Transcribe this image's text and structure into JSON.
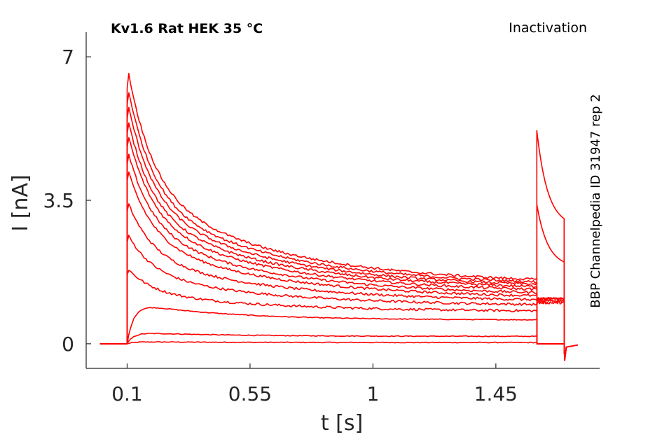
{
  "chart_data": {
    "type": "line",
    "title": "Kv1.6  Rat  HEK  35 °C",
    "subtitle": "Inactivation",
    "side_note": "BBP Channelpedia ID 31947 rep 2",
    "xlabel": "t [s]",
    "ylabel": "I [nA]",
    "xlim": [
      -0.05,
      1.83
    ],
    "ylim": [
      -0.6,
      7.6
    ],
    "x_ticks": [
      0.1,
      0.55,
      1,
      1.45
    ],
    "x_tick_labels": [
      "0.1",
      "0.55",
      "1",
      "1.45"
    ],
    "y_ticks": [
      0,
      3.5,
      7
    ],
    "y_tick_labels": [
      "0",
      "3.5",
      "7"
    ],
    "grid": false,
    "line_color": "#ff0000",
    "pulse_start": 0.1,
    "pulse_end": 1.6,
    "tail_end": 1.7,
    "baseline_start": 0.0,
    "trace_end": 1.75,
    "series": [
      {
        "peak": 0.05,
        "steady": 0.03,
        "tail": 0.0
      },
      {
        "peak": 0.28,
        "steady": 0.18,
        "tail": 0.0
      },
      {
        "peak": 1.0,
        "steady": 0.58,
        "tail": 0.0
      },
      {
        "peak": 1.85,
        "steady": 0.78,
        "tail": 0.0
      },
      {
        "peak": 2.7,
        "steady": 0.92,
        "tail": 0.0
      },
      {
        "peak": 3.5,
        "steady": 1.02,
        "tail": 0.0
      },
      {
        "peak": 4.3,
        "steady": 1.1,
        "tail": 0.0
      },
      {
        "peak": 4.75,
        "steady": 1.17,
        "tail": 1.0
      },
      {
        "peak": 5.2,
        "steady": 1.24,
        "tail": 1.05
      },
      {
        "peak": 5.55,
        "steady": 1.3,
        "tail": 1.1
      },
      {
        "peak": 5.95,
        "steady": 1.35,
        "tail": 1.1
      },
      {
        "peak": 6.35,
        "steady": 1.4,
        "tail": 3.4
      },
      {
        "peak": 6.8,
        "steady": 1.45,
        "tail": 5.2
      }
    ]
  }
}
